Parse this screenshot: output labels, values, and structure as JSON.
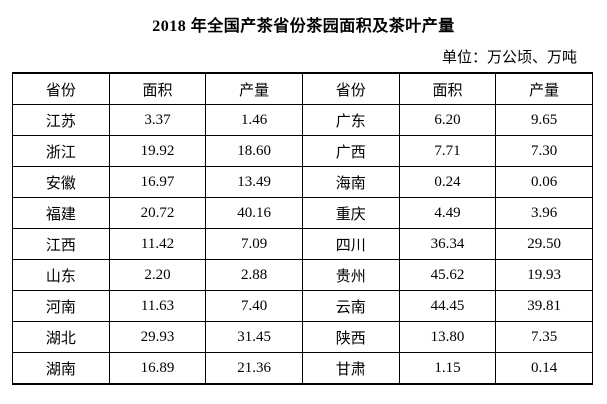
{
  "title": "2018 年全国产茶省份茶园面积及茶叶产量",
  "unit_note": "单位：万公顷、万吨",
  "table": {
    "headers": [
      "省份",
      "面积",
      "产量",
      "省份",
      "面积",
      "产量"
    ],
    "rows": [
      [
        "江苏",
        "3.37",
        "1.46",
        "广东",
        "6.20",
        "9.65"
      ],
      [
        "浙江",
        "19.92",
        "18.60",
        "广西",
        "7.71",
        "7.30"
      ],
      [
        "安徽",
        "16.97",
        "13.49",
        "海南",
        "0.24",
        "0.06"
      ],
      [
        "福建",
        "20.72",
        "40.16",
        "重庆",
        "4.49",
        "3.96"
      ],
      [
        "江西",
        "11.42",
        "7.09",
        "四川",
        "36.34",
        "29.50"
      ],
      [
        "山东",
        "2.20",
        "2.88",
        "贵州",
        "45.62",
        "19.93"
      ],
      [
        "河南",
        "11.63",
        "7.40",
        "云南",
        "44.45",
        "39.81"
      ],
      [
        "湖北",
        "29.93",
        "31.45",
        "陕西",
        "13.80",
        "7.35"
      ],
      [
        "湖南",
        "16.89",
        "21.36",
        "甘肃",
        "1.15",
        "0.14"
      ]
    ]
  },
  "chart_data": {
    "type": "table",
    "title": "2018 年全国产茶省份茶园面积及茶叶产量",
    "unit_note": "单位：万公顷、万吨",
    "columns": [
      "省份",
      "面积",
      "产量"
    ],
    "provinces": [
      {
        "name": "江苏",
        "area": 3.37,
        "production": 1.46
      },
      {
        "name": "浙江",
        "area": 19.92,
        "production": 18.6
      },
      {
        "name": "安徽",
        "area": 16.97,
        "production": 13.49
      },
      {
        "name": "福建",
        "area": 20.72,
        "production": 40.16
      },
      {
        "name": "江西",
        "area": 11.42,
        "production": 7.09
      },
      {
        "name": "山东",
        "area": 2.2,
        "production": 2.88
      },
      {
        "name": "河南",
        "area": 11.63,
        "production": 7.4
      },
      {
        "name": "湖北",
        "area": 29.93,
        "production": 31.45
      },
      {
        "name": "湖南",
        "area": 16.89,
        "production": 21.36
      },
      {
        "name": "广东",
        "area": 6.2,
        "production": 9.65
      },
      {
        "name": "广西",
        "area": 7.71,
        "production": 7.3
      },
      {
        "name": "海南",
        "area": 0.24,
        "production": 0.06
      },
      {
        "name": "重庆",
        "area": 4.49,
        "production": 3.96
      },
      {
        "name": "四川",
        "area": 36.34,
        "production": 29.5
      },
      {
        "name": "贵州",
        "area": 45.62,
        "production": 19.93
      },
      {
        "name": "云南",
        "area": 44.45,
        "production": 39.81
      },
      {
        "name": "陕西",
        "area": 13.8,
        "production": 7.35
      },
      {
        "name": "甘肃",
        "area": 1.15,
        "production": 0.14
      }
    ]
  },
  "colors": {
    "background": "#ffffff",
    "text": "#000000",
    "border": "#000000"
  }
}
